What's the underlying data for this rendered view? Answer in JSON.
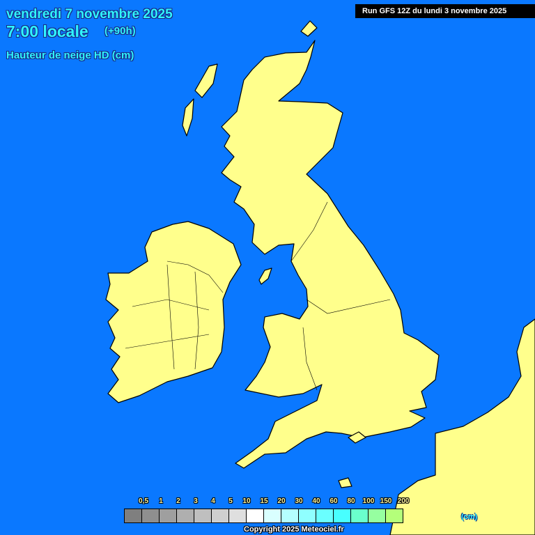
{
  "header": {
    "date": "vendredi 7 novembre 2025",
    "time": "7:00 locale",
    "lead": "(+90h)",
    "parameter": "Hauteur de neige HD (cm)",
    "run": "Run GFS 12Z du lundi 3 novembre 2025"
  },
  "colors": {
    "sea": "#0a78ff",
    "land": "#ffff8c"
  },
  "legend": {
    "labels": [
      "0,5",
      "1",
      "2",
      "3",
      "4",
      "5",
      "10",
      "15",
      "20",
      "30",
      "40",
      "60",
      "80",
      "100",
      "150",
      "200"
    ],
    "swatches": [
      "#7f7f7f",
      "#8f8f8f",
      "#9f9f9f",
      "#afafaf",
      "#bfbfbf",
      "#cfcfcf",
      "#dfdfdf",
      "#ffffff",
      "#d9ffff",
      "#b4ffff",
      "#8fffff",
      "#6affff",
      "#48ffff",
      "#6affcc",
      "#96ffa0",
      "#b4ff7a"
    ],
    "unit": "(cm)"
  },
  "footer": {
    "copyright": "Copyright 2025 Meteociel.fr"
  }
}
